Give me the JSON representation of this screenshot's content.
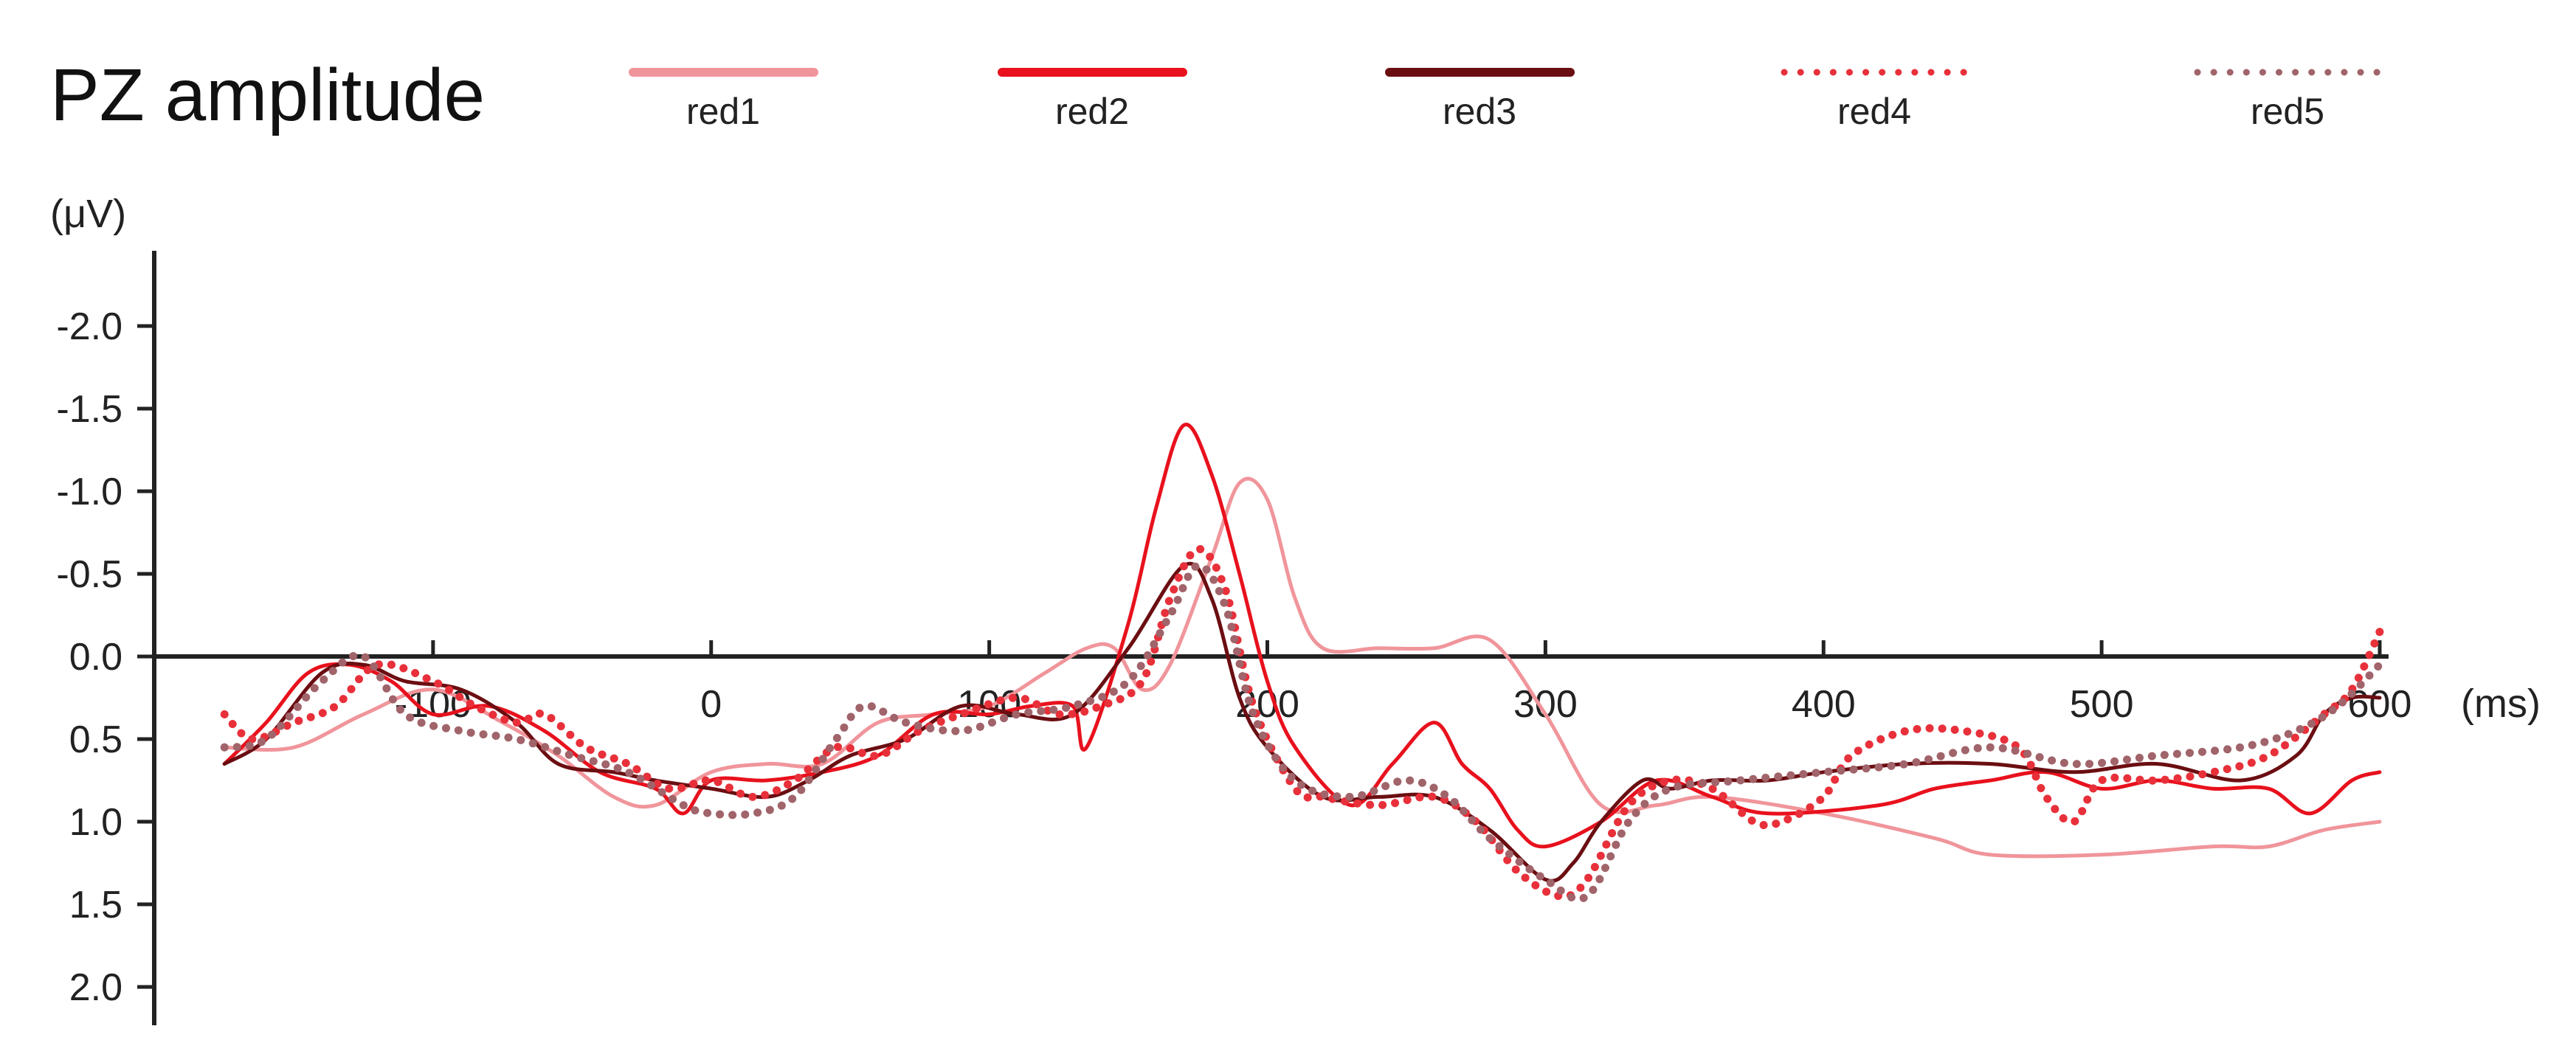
{
  "chart_data": {
    "type": "line",
    "title": "PZ amplitude",
    "ylabel": "(μV)",
    "xlabel": "(ms)",
    "y_inverted": true,
    "x_axis_at_y": 0,
    "xlim": [
      -200,
      600
    ],
    "ylim": [
      -2.0,
      2.0
    ],
    "x_ticks": [
      -100,
      0,
      100,
      200,
      300,
      400,
      500,
      600
    ],
    "x_tick_labels": [
      "-100",
      "0",
      "100",
      "200",
      "300",
      "400",
      "500",
      "600"
    ],
    "y_ticks": [
      -2.0,
      -1.5,
      -1.0,
      -0.5,
      0.0,
      0.5,
      1.0,
      1.5,
      2.0
    ],
    "y_tick_labels": [
      "-2.0",
      "-1.5",
      "-1.0",
      "-0.5",
      "0.0",
      "0.5",
      "1.0",
      "1.5",
      "2.0"
    ],
    "legend_position": "top",
    "series": [
      {
        "name": "red1",
        "color": "#f0959b",
        "style": "solid",
        "points": [
          [
            -175,
            0.55
          ],
          [
            -150,
            0.55
          ],
          [
            -125,
            0.35
          ],
          [
            -100,
            0.2
          ],
          [
            -75,
            0.4
          ],
          [
            -55,
            0.6
          ],
          [
            -35,
            0.85
          ],
          [
            -20,
            0.9
          ],
          [
            0,
            0.7
          ],
          [
            20,
            0.65
          ],
          [
            40,
            0.65
          ],
          [
            60,
            0.4
          ],
          [
            80,
            0.35
          ],
          [
            100,
            0.3
          ],
          [
            120,
            0.1
          ],
          [
            135,
            -0.05
          ],
          [
            145,
            -0.05
          ],
          [
            155,
            0.2
          ],
          [
            165,
            0.05
          ],
          [
            180,
            -0.6
          ],
          [
            190,
            -1.05
          ],
          [
            200,
            -0.95
          ],
          [
            210,
            -0.35
          ],
          [
            220,
            -0.05
          ],
          [
            240,
            -0.05
          ],
          [
            260,
            -0.05
          ],
          [
            280,
            -0.1
          ],
          [
            300,
            0.35
          ],
          [
            320,
            0.9
          ],
          [
            340,
            0.9
          ],
          [
            360,
            0.85
          ],
          [
            400,
            0.95
          ],
          [
            440,
            1.1
          ],
          [
            460,
            1.2
          ],
          [
            500,
            1.2
          ],
          [
            540,
            1.15
          ],
          [
            560,
            1.15
          ],
          [
            580,
            1.05
          ],
          [
            600,
            1.0
          ]
        ]
      },
      {
        "name": "red2",
        "color": "#e8111d",
        "style": "solid",
        "points": [
          [
            -175,
            0.65
          ],
          [
            -160,
            0.4
          ],
          [
            -145,
            0.1
          ],
          [
            -130,
            0.05
          ],
          [
            -115,
            0.15
          ],
          [
            -100,
            0.35
          ],
          [
            -80,
            0.3
          ],
          [
            -60,
            0.45
          ],
          [
            -40,
            0.7
          ],
          [
            -20,
            0.8
          ],
          [
            -10,
            0.95
          ],
          [
            0,
            0.75
          ],
          [
            20,
            0.75
          ],
          [
            40,
            0.7
          ],
          [
            60,
            0.6
          ],
          [
            80,
            0.35
          ],
          [
            100,
            0.35
          ],
          [
            115,
            0.3
          ],
          [
            130,
            0.3
          ],
          [
            135,
            0.55
          ],
          [
            150,
            -0.2
          ],
          [
            160,
            -0.9
          ],
          [
            170,
            -1.4
          ],
          [
            180,
            -1.1
          ],
          [
            190,
            -0.5
          ],
          [
            200,
            0.15
          ],
          [
            210,
            0.55
          ],
          [
            230,
            0.9
          ],
          [
            245,
            0.65
          ],
          [
            260,
            0.4
          ],
          [
            270,
            0.65
          ],
          [
            280,
            0.8
          ],
          [
            290,
            1.05
          ],
          [
            300,
            1.15
          ],
          [
            320,
            1.0
          ],
          [
            340,
            0.75
          ],
          [
            360,
            0.85
          ],
          [
            380,
            0.95
          ],
          [
            420,
            0.9
          ],
          [
            440,
            0.8
          ],
          [
            460,
            0.75
          ],
          [
            480,
            0.7
          ],
          [
            500,
            0.8
          ],
          [
            520,
            0.75
          ],
          [
            540,
            0.8
          ],
          [
            560,
            0.8
          ],
          [
            575,
            0.95
          ],
          [
            590,
            0.75
          ],
          [
            600,
            0.7
          ]
        ]
      },
      {
        "name": "red3",
        "color": "#6b0e12",
        "style": "solid",
        "points": [
          [
            -175,
            0.65
          ],
          [
            -160,
            0.5
          ],
          [
            -140,
            0.1
          ],
          [
            -125,
            0.05
          ],
          [
            -110,
            0.15
          ],
          [
            -90,
            0.2
          ],
          [
            -70,
            0.4
          ],
          [
            -55,
            0.65
          ],
          [
            -35,
            0.7
          ],
          [
            -20,
            0.75
          ],
          [
            0,
            0.8
          ],
          [
            20,
            0.85
          ],
          [
            35,
            0.75
          ],
          [
            50,
            0.6
          ],
          [
            70,
            0.5
          ],
          [
            90,
            0.3
          ],
          [
            110,
            0.35
          ],
          [
            130,
            0.35
          ],
          [
            150,
            -0.05
          ],
          [
            170,
            -0.55
          ],
          [
            180,
            -0.35
          ],
          [
            190,
            0.25
          ],
          [
            200,
            0.55
          ],
          [
            220,
            0.85
          ],
          [
            240,
            0.85
          ],
          [
            260,
            0.85
          ],
          [
            280,
            1.05
          ],
          [
            300,
            1.35
          ],
          [
            310,
            1.25
          ],
          [
            320,
            1.0
          ],
          [
            335,
            0.75
          ],
          [
            345,
            0.8
          ],
          [
            360,
            0.75
          ],
          [
            380,
            0.75
          ],
          [
            400,
            0.7
          ],
          [
            430,
            0.65
          ],
          [
            460,
            0.65
          ],
          [
            490,
            0.7
          ],
          [
            520,
            0.65
          ],
          [
            550,
            0.75
          ],
          [
            570,
            0.6
          ],
          [
            580,
            0.35
          ],
          [
            590,
            0.25
          ],
          [
            600,
            0.25
          ]
        ]
      },
      {
        "name": "red4",
        "color": "#e8303a",
        "style": "dotted",
        "points": [
          [
            -175,
            0.35
          ],
          [
            -165,
            0.5
          ],
          [
            -150,
            0.4
          ],
          [
            -135,
            0.3
          ],
          [
            -120,
            0.05
          ],
          [
            -100,
            0.15
          ],
          [
            -85,
            0.3
          ],
          [
            -70,
            0.4
          ],
          [
            -60,
            0.35
          ],
          [
            -45,
            0.55
          ],
          [
            -30,
            0.65
          ],
          [
            -15,
            0.8
          ],
          [
            0,
            0.75
          ],
          [
            15,
            0.85
          ],
          [
            30,
            0.75
          ],
          [
            45,
            0.55
          ],
          [
            60,
            0.6
          ],
          [
            75,
            0.45
          ],
          [
            90,
            0.35
          ],
          [
            110,
            0.25
          ],
          [
            125,
            0.35
          ],
          [
            140,
            0.3
          ],
          [
            155,
            0.15
          ],
          [
            165,
            -0.35
          ],
          [
            175,
            -0.65
          ],
          [
            185,
            -0.4
          ],
          [
            195,
            0.3
          ],
          [
            210,
            0.8
          ],
          [
            220,
            0.85
          ],
          [
            240,
            0.9
          ],
          [
            260,
            0.85
          ],
          [
            275,
            1.0
          ],
          [
            290,
            1.3
          ],
          [
            305,
            1.45
          ],
          [
            315,
            1.35
          ],
          [
            330,
            0.9
          ],
          [
            345,
            0.75
          ],
          [
            360,
            0.8
          ],
          [
            375,
            1.0
          ],
          [
            385,
            1.0
          ],
          [
            400,
            0.85
          ],
          [
            410,
            0.6
          ],
          [
            430,
            0.45
          ],
          [
            450,
            0.45
          ],
          [
            470,
            0.55
          ],
          [
            480,
            0.85
          ],
          [
            490,
            1.0
          ],
          [
            500,
            0.75
          ],
          [
            520,
            0.75
          ],
          [
            540,
            0.7
          ],
          [
            560,
            0.6
          ],
          [
            580,
            0.35
          ],
          [
            590,
            0.2
          ],
          [
            600,
            -0.15
          ]
        ]
      },
      {
        "name": "red5",
        "color": "#a0646a",
        "style": "dotted",
        "points": [
          [
            -175,
            0.55
          ],
          [
            -160,
            0.5
          ],
          [
            -140,
            0.15
          ],
          [
            -125,
            0.0
          ],
          [
            -110,
            0.35
          ],
          [
            -90,
            0.45
          ],
          [
            -70,
            0.5
          ],
          [
            -50,
            0.6
          ],
          [
            -30,
            0.7
          ],
          [
            -10,
            0.9
          ],
          [
            0,
            0.95
          ],
          [
            15,
            0.95
          ],
          [
            30,
            0.85
          ],
          [
            45,
            0.5
          ],
          [
            55,
            0.3
          ],
          [
            70,
            0.4
          ],
          [
            90,
            0.45
          ],
          [
            110,
            0.35
          ],
          [
            130,
            0.3
          ],
          [
            150,
            0.15
          ],
          [
            165,
            -0.25
          ],
          [
            175,
            -0.55
          ],
          [
            185,
            -0.3
          ],
          [
            195,
            0.35
          ],
          [
            210,
            0.75
          ],
          [
            230,
            0.85
          ],
          [
            250,
            0.75
          ],
          [
            265,
            0.85
          ],
          [
            280,
            1.1
          ],
          [
            300,
            1.35
          ],
          [
            315,
            1.45
          ],
          [
            330,
            1.0
          ],
          [
            345,
            0.8
          ],
          [
            370,
            0.75
          ],
          [
            400,
            0.7
          ],
          [
            430,
            0.65
          ],
          [
            460,
            0.55
          ],
          [
            490,
            0.65
          ],
          [
            520,
            0.6
          ],
          [
            550,
            0.55
          ],
          [
            570,
            0.45
          ],
          [
            585,
            0.3
          ],
          [
            600,
            0.05
          ]
        ]
      }
    ]
  }
}
